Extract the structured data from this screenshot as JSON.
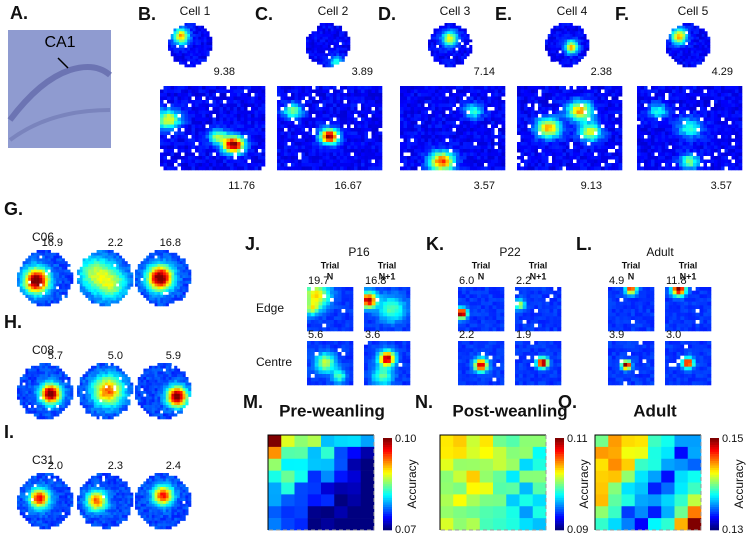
{
  "panel_a": {
    "label": "A.",
    "region": "CA1"
  },
  "cells": [
    {
      "label": "B.",
      "title": "Cell 1",
      "circle_peak": "9.38",
      "box_peak": "11.76"
    },
    {
      "label": "C.",
      "title": "Cell 2",
      "circle_peak": "3.89",
      "box_peak": "16.67"
    },
    {
      "label": "D.",
      "title": "Cell 3",
      "circle_peak": "7.14",
      "box_peak": "3.57"
    },
    {
      "label": "E.",
      "title": "Cell 4",
      "circle_peak": "2.38",
      "box_peak": "9.13"
    },
    {
      "label": "F.",
      "title": "Cell 5",
      "circle_peak": "4.29",
      "box_peak": "3.57"
    }
  ],
  "units": [
    {
      "label": "G.",
      "name": "C06",
      "peaks": [
        "16.9",
        "2.2",
        "16.8"
      ]
    },
    {
      "label": "H.",
      "name": "C08",
      "peaks": [
        "5.7",
        "5.0",
        "5.9"
      ]
    },
    {
      "label": "I.",
      "name": "C31",
      "peaks": [
        "2.0",
        "2.3",
        "2.4"
      ]
    }
  ],
  "trial_word": "Trial",
  "trial_n": "N",
  "trial_n1": "N+1",
  "rows": [
    "Edge",
    "Centre"
  ],
  "ages": [
    {
      "label": "J.",
      "age": "P16",
      "peaks": [
        [
          "19.7",
          "16.8"
        ],
        [
          "5.6",
          "3.6"
        ]
      ]
    },
    {
      "label": "K.",
      "age": "P22",
      "peaks": [
        [
          "6.0",
          "2.2"
        ],
        [
          "2.2",
          "1.9"
        ]
      ]
    },
    {
      "label": "L.",
      "age": "Adult",
      "peaks": [
        [
          "4.9",
          "11.8"
        ],
        [
          "3.9",
          "3.0"
        ]
      ]
    }
  ],
  "accuracy_maps": [
    {
      "label": "M.",
      "title": "Pre-weanling",
      "max": "0.10",
      "min": "0.07"
    },
    {
      "label": "N.",
      "title": "Post-weanling",
      "max": "0.11",
      "min": "0.09"
    },
    {
      "label": "O.",
      "title": "Adult",
      "max": "0.15",
      "min": "0.13"
    }
  ],
  "colorbar_label": "Accuracy"
}
